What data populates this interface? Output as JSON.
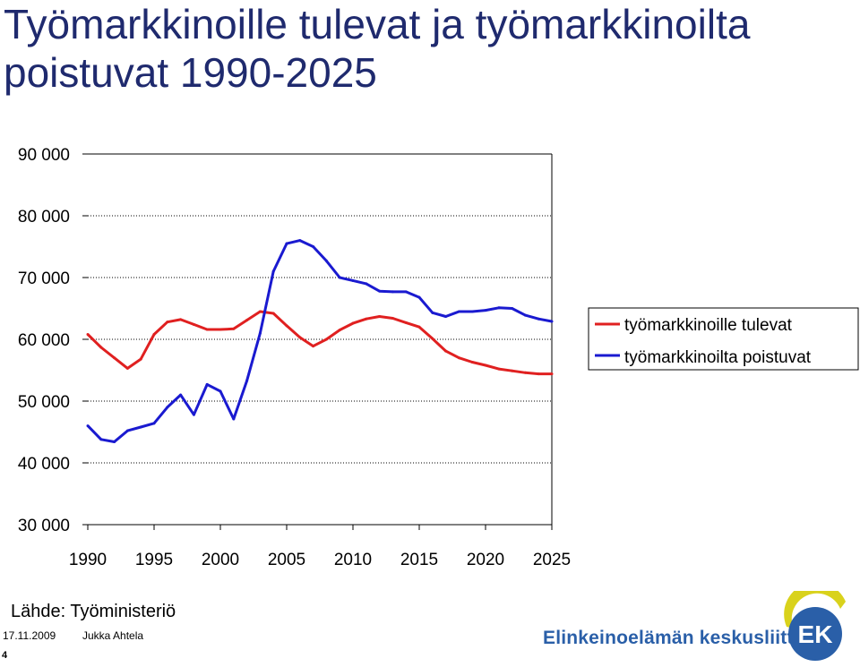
{
  "title": "Työmarkkinoille tulevat ja työmarkkinoilta poistuvat 1990-2025",
  "source": "Lähde: Työministeriö",
  "footer": {
    "date": "17.11.2009",
    "author": "Jukka Ahtela",
    "page": "4",
    "organization": "Elinkeinoelämän keskusliitto",
    "logo_text": "EK"
  },
  "colors": {
    "title": "#1f2a6e",
    "organization": "#2a5fa8",
    "logo_blue": "#2a5fa8",
    "logo_yellow": "#d9d21c"
  },
  "chart_data": {
    "type": "line",
    "title": "",
    "xlabel": "",
    "ylabel": "",
    "x": [
      1990,
      1991,
      1992,
      1993,
      1994,
      1995,
      1996,
      1997,
      1998,
      1999,
      2000,
      2001,
      2002,
      2003,
      2004,
      2005,
      2006,
      2007,
      2008,
      2009,
      2010,
      2011,
      2012,
      2013,
      2014,
      2015,
      2016,
      2017,
      2018,
      2019,
      2020,
      2021,
      2022,
      2023,
      2024,
      2025
    ],
    "xlim": [
      1990,
      2025
    ],
    "ylim": [
      30000,
      90000
    ],
    "x_ticks": [
      "1990",
      "1995",
      "2000",
      "2005",
      "2010",
      "2015",
      "2020",
      "2025"
    ],
    "y_ticks": [
      "30 000",
      "40 000",
      "50 000",
      "60 000",
      "70 000",
      "80 000",
      "90 000"
    ],
    "grid": "horizontal dotted",
    "legend_position": "right",
    "series": [
      {
        "name": "työmarkkinoille tulevat",
        "color": "#e02020",
        "values": [
          60800,
          58700,
          57000,
          55300,
          56800,
          60800,
          62800,
          63200,
          62400,
          61600,
          61600,
          61700,
          63100,
          64500,
          64200,
          62200,
          60300,
          58900,
          60000,
          61500,
          62600,
          63300,
          63700,
          63400,
          62700,
          62000,
          60100,
          58100,
          57000,
          56300,
          55800,
          55200,
          54900,
          54600,
          54400,
          54400
        ]
      },
      {
        "name": "työmarkkinoilta poistuvat",
        "color": "#1a1ad0",
        "values": [
          46000,
          43800,
          43400,
          45200,
          45800,
          46400,
          49000,
          51000,
          47800,
          52700,
          51600,
          47100,
          53300,
          61000,
          71000,
          75500,
          76000,
          75000,
          72700,
          70000,
          69500,
          69000,
          67800,
          67700,
          67700,
          66800,
          64300,
          63700,
          64500,
          64500,
          64700,
          65100,
          65000,
          63900,
          63300,
          62900
        ]
      }
    ]
  }
}
